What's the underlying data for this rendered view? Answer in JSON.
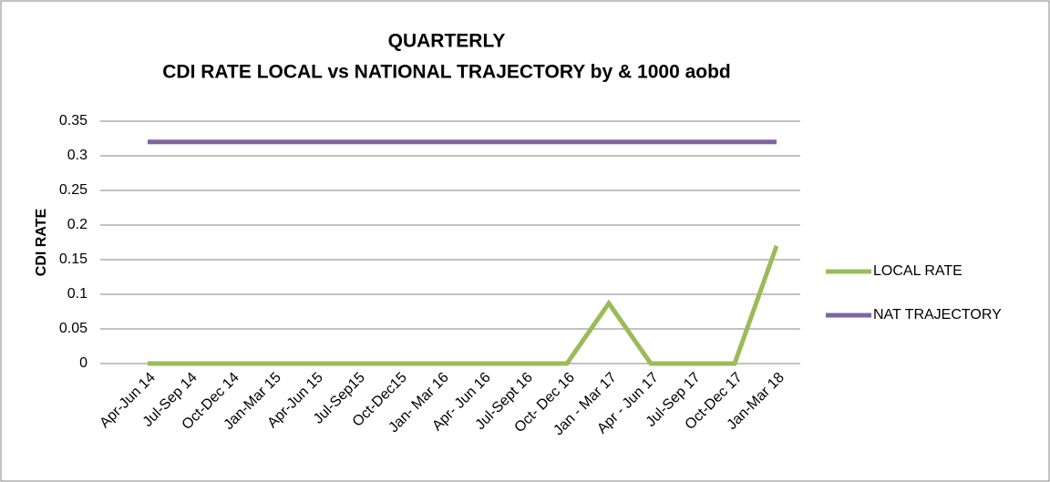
{
  "chart_data": {
    "type": "line",
    "title": [
      "QUARTERLY",
      "CDI RATE LOCAL vs NATIONAL TRAJECTORY by  & 1000 aobd"
    ],
    "y_label": "CDI RATE",
    "categories": [
      "Apr-Jun 14",
      "Jul-Sep 14",
      "Oct-Dec 14",
      "Jan-Mar 15",
      "Apr-Jun 15",
      "Jul-Sep15",
      "Oct-Dec15",
      "Jan- Mar 16",
      "Apr- Jun 16",
      "Jul-Sept 16",
      "Oct- Dec 16",
      "Jan - Mar 17",
      "Apr - Jun 17",
      "Jul-Sep 17",
      "Oct-Dec 17",
      "Jan-Mar 18"
    ],
    "series": [
      {
        "name": "LOCAL RATE",
        "color": "#9bbb59",
        "values": [
          0,
          0,
          0,
          0,
          0,
          0,
          0,
          0,
          0,
          0,
          0,
          0.087,
          0,
          0,
          0,
          0.17
        ]
      },
      {
        "name": "NAT TRAJECTORY",
        "color": "#8064a2",
        "values": [
          0.32,
          0.32,
          0.32,
          0.32,
          0.32,
          0.32,
          0.32,
          0.32,
          0.32,
          0.32,
          0.32,
          0.32,
          0.32,
          0.32,
          0.32,
          0.32
        ]
      }
    ],
    "ylim": [
      0,
      0.35
    ],
    "yticks": [
      0,
      0.05,
      0.1,
      0.15,
      0.2,
      0.25,
      0.3,
      0.35
    ],
    "grid": true,
    "legend": "right"
  }
}
